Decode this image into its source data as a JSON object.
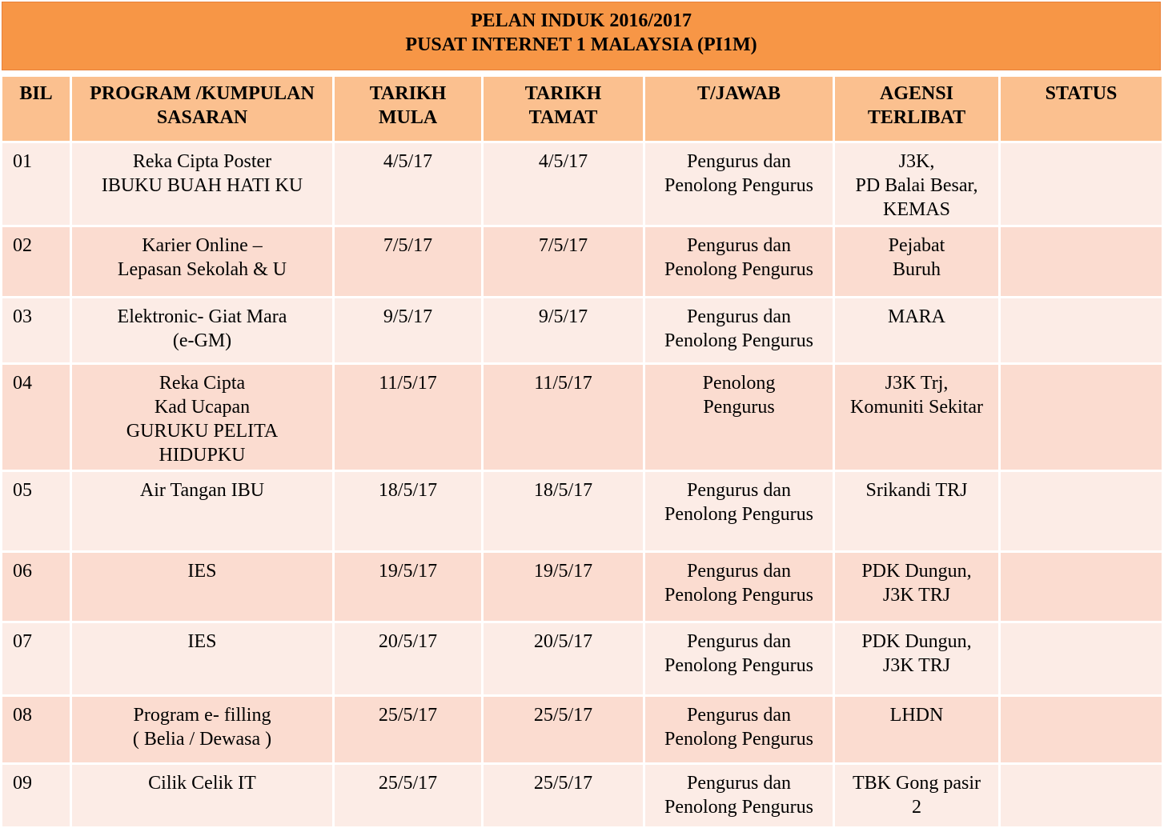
{
  "title": {
    "line1": "PELAN INDUK 2016/2017",
    "line2": "PUSAT INTERNET 1 MALAYSIA (PI1M)"
  },
  "headers": [
    [
      "BIL"
    ],
    [
      "PROGRAM /KUMPULAN",
      "SASARAN"
    ],
    [
      "TARIKH",
      "MULA"
    ],
    [
      "TARIKH",
      "TAMAT"
    ],
    [
      "T/JAWAB"
    ],
    [
      "AGENSI",
      "TERLIBAT"
    ],
    [
      "STATUS"
    ]
  ],
  "rows": [
    {
      "bil": "01",
      "program": [
        "Reka Cipta Poster",
        "IBUKU  BUAH HATI KU"
      ],
      "mula": "4/5/17",
      "tamat": "4/5/17",
      "tjawab": [
        "Pengurus dan",
        "Penolong Pengurus"
      ],
      "agensi": [
        "J3K,",
        "PD Balai Besar,",
        "KEMAS"
      ],
      "status": ""
    },
    {
      "bil": "02",
      "program": [
        "Karier Online –",
        "Lepasan Sekolah & U"
      ],
      "mula": "7/5/17",
      "tamat": "7/5/17",
      "tjawab": [
        "Pengurus dan",
        "Penolong Pengurus"
      ],
      "agensi": [
        "Pejabat",
        "Buruh"
      ],
      "status": ""
    },
    {
      "bil": "03",
      "program": [
        "Elektronic-  Giat Mara",
        "(e-GM)"
      ],
      "mula": "9/5/17",
      "tamat": "9/5/17",
      "tjawab": [
        "Pengurus dan",
        "Penolong Pengurus"
      ],
      "agensi": [
        "MARA"
      ],
      "status": ""
    },
    {
      "bil": "04",
      "program": [
        "Reka Cipta",
        "Kad Ucapan",
        "GURUKU  PELITA",
        "HIDUPKU"
      ],
      "mula": "11/5/17",
      "tamat": "11/5/17",
      "tjawab": [
        "Penolong",
        "Pengurus"
      ],
      "agensi": [
        "J3K Trj,",
        "Komuniti Sekitar"
      ],
      "status": ""
    },
    {
      "bil": "05",
      "program": [
        "Air Tangan IBU"
      ],
      "mula": "18/5/17",
      "tamat": "18/5/17",
      "tjawab": [
        "Pengurus dan",
        "Penolong Pengurus"
      ],
      "agensi": [
        "Srikandi  TRJ"
      ],
      "status": ""
    },
    {
      "bil": "06",
      "program": [
        "IES"
      ],
      "mula": "19/5/17",
      "tamat": "19/5/17",
      "tjawab": [
        "Pengurus dan",
        "Penolong Pengurus"
      ],
      "agensi": [
        "PDK Dungun,",
        "J3K TRJ"
      ],
      "status": ""
    },
    {
      "bil": "07",
      "program": [
        "IES"
      ],
      "mula": "20/5/17",
      "tamat": "20/5/17",
      "tjawab": [
        "Pengurus dan",
        "Penolong Pengurus"
      ],
      "agensi": [
        "PDK Dungun,",
        "J3K TRJ"
      ],
      "status": ""
    },
    {
      "bil": "08",
      "program": [
        "Program e-  filling",
        "( Belia  / Dewasa )"
      ],
      "mula": "25/5/17",
      "tamat": "25/5/17",
      "tjawab": [
        "Pengurus dan",
        "Penolong Pengurus"
      ],
      "agensi": [
        "LHDN"
      ],
      "status": ""
    },
    {
      "bil": "09",
      "program": [
        "Cilik  Celik IT"
      ],
      "mula": "25/5/17",
      "tamat": "25/5/17",
      "tjawab": [
        "Pengurus dan",
        "Penolong Pengurus"
      ],
      "agensi": [
        "TBK Gong pasir",
        "2"
      ],
      "status": ""
    }
  ]
}
